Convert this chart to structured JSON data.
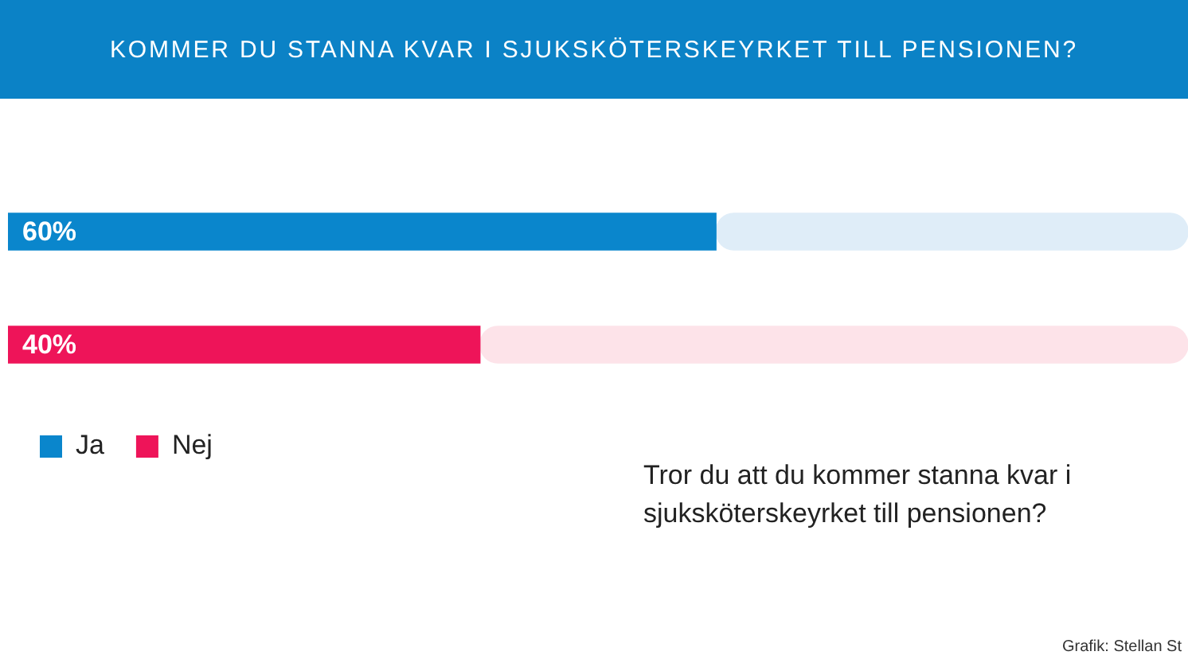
{
  "chart_data": {
    "type": "bar",
    "title": "KOMMER DU STANNA KVAR I SJUKSKÖTERSKEYRKET TILL PENSIONEN?",
    "orientation": "horizontal",
    "stacked": true,
    "categories": [
      null,
      null
    ],
    "series": [
      {
        "name": "Ja",
        "color": "#0a86cc",
        "values": [
          60,
          null
        ],
        "value_labels": [
          "60%",
          null
        ]
      },
      {
        "name": "Nej",
        "color": "#ee1459",
        "values": [
          null,
          40
        ],
        "value_labels": [
          null,
          "40%"
        ]
      },
      {
        "colors": [
          "#dfedf8",
          "#fde3e9"
        ],
        "values": [
          40,
          60
        ]
      }
    ],
    "tick_labels": false,
    "legend": "bottom left",
    "annotations": [
      "Tror du att du kommer stanna kvar i sjuksköterskeyrket till pensionen?",
      "Grafik: Stellan St"
    ]
  }
}
